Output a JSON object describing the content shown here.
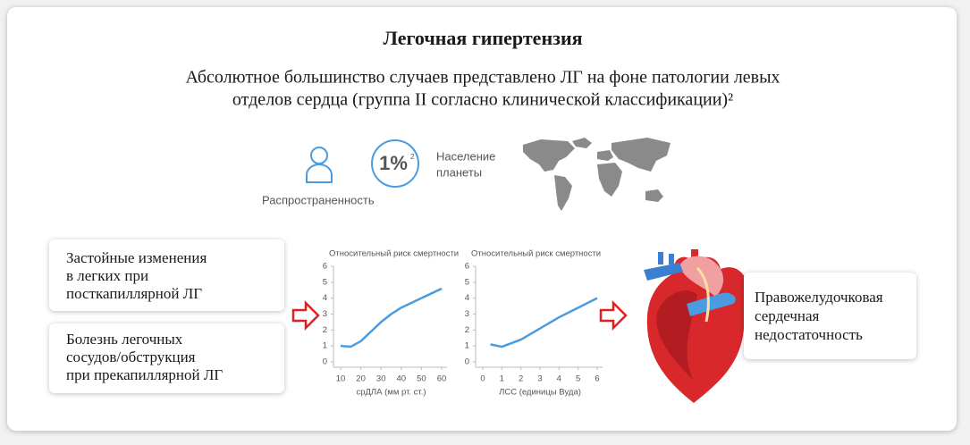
{
  "header": {
    "title": "Легочная гипертензия",
    "subtitle_lines": [
      "Абсолютное большинство случаев представлено ЛГ на фоне патологии левых",
      "отделов сердца (группа II согласно клинической классификации)²"
    ]
  },
  "prevalence": {
    "percent": "1%",
    "reference": "2",
    "population_lines": [
      "Население",
      "планеты"
    ],
    "label": "Распространенность"
  },
  "causes": [
    {
      "lines": [
        "Застойные изменения",
        "в легких при",
        "посткапиллярной ЛГ"
      ]
    },
    {
      "lines": [
        "Болезнь легочных",
        "сосудов/обструкция",
        "при прекапиллярной ЛГ"
      ]
    }
  ],
  "outcome": {
    "lines": [
      "Правожелудочковая",
      "сердечная",
      "недостаточность"
    ]
  },
  "chart_data": [
    {
      "type": "line",
      "title": "Относительный риск смертности",
      "x_label": "срДЛА (мм рт. ст.)",
      "x": [
        10,
        15,
        20,
        25,
        30,
        35,
        40,
        45,
        50,
        55,
        60
      ],
      "values": [
        1.0,
        0.95,
        1.3,
        1.9,
        2.5,
        3.0,
        3.4,
        3.7,
        4.0,
        4.3,
        4.6
      ],
      "color": "#4a9be0",
      "xlim": [
        10,
        60
      ],
      "xticks": [
        10,
        20,
        30,
        40,
        50,
        60
      ],
      "ylim": [
        0,
        6
      ],
      "yticks": [
        0,
        1,
        2,
        3,
        4,
        5,
        6
      ]
    },
    {
      "type": "line",
      "title": "Относительный риск смертности",
      "x_label": "ЛСС (единицы Вуда)",
      "x": [
        0.4,
        1,
        2,
        3,
        4,
        5,
        6
      ],
      "values": [
        1.1,
        0.95,
        1.4,
        2.1,
        2.8,
        3.4,
        4.0
      ],
      "color": "#4a9be0",
      "xlim": [
        0,
        6
      ],
      "xticks": [
        0,
        1,
        2,
        3,
        4,
        5,
        6
      ],
      "ylim": [
        0,
        6
      ],
      "yticks": [
        0,
        1,
        2,
        3,
        4,
        5,
        6
      ]
    }
  ]
}
